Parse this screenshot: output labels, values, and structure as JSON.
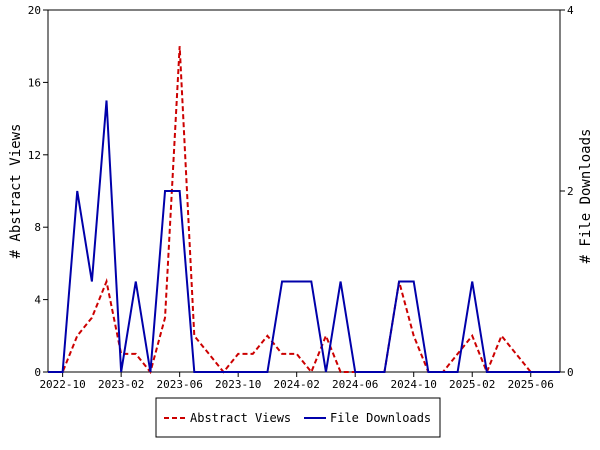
{
  "chart_data": {
    "type": "line",
    "x_labels": [
      "2022-10",
      "2023-02",
      "2023-06",
      "2023-10",
      "2024-02",
      "2024-06",
      "2024-10",
      "2025-02",
      "2025-06"
    ],
    "x": [
      "2022-09",
      "2022-10",
      "2022-11",
      "2022-12",
      "2023-01",
      "2023-02",
      "2023-03",
      "2023-04",
      "2023-05",
      "2023-06",
      "2023-07",
      "2023-08",
      "2023-09",
      "2023-10",
      "2023-11",
      "2023-12",
      "2024-01",
      "2024-02",
      "2024-03",
      "2024-04",
      "2024-05",
      "2024-06",
      "2024-07",
      "2024-08",
      "2024-09",
      "2024-10",
      "2024-11",
      "2024-12",
      "2025-01",
      "2025-02",
      "2025-03",
      "2025-04",
      "2025-05",
      "2025-06",
      "2025-07",
      "2025-08"
    ],
    "ylabel": "# Abstract Views",
    "y2label": "# File Downloads",
    "ylim": [
      0,
      20
    ],
    "y_ticks": [
      0,
      4,
      8,
      12,
      16,
      20
    ],
    "y2lim": [
      0,
      4
    ],
    "y2_ticks": [
      0,
      2,
      4
    ],
    "grid": false,
    "legend_position": "bottom",
    "series": [
      {
        "name": "Abstract Views",
        "axis": "left",
        "color": "#cc0000",
        "style": "dashed",
        "values": [
          0,
          0,
          2,
          3,
          5,
          1,
          1,
          0,
          3,
          18,
          2,
          1,
          0,
          1,
          1,
          2,
          1,
          1,
          0,
          2,
          0,
          0,
          0,
          0,
          5,
          2,
          0,
          0,
          1,
          2,
          0,
          2,
          1,
          0,
          0,
          0
        ]
      },
      {
        "name": "File Downloads",
        "axis": "right",
        "color": "#0000aa",
        "style": "solid",
        "values": [
          0,
          0,
          2,
          1,
          3,
          0,
          1,
          0,
          2,
          2,
          0,
          0,
          0,
          0,
          0,
          0,
          1,
          1,
          1,
          0,
          1,
          0,
          0,
          0,
          1,
          1,
          0,
          0,
          0,
          1,
          0,
          0,
          0,
          0,
          0,
          0
        ]
      }
    ]
  }
}
